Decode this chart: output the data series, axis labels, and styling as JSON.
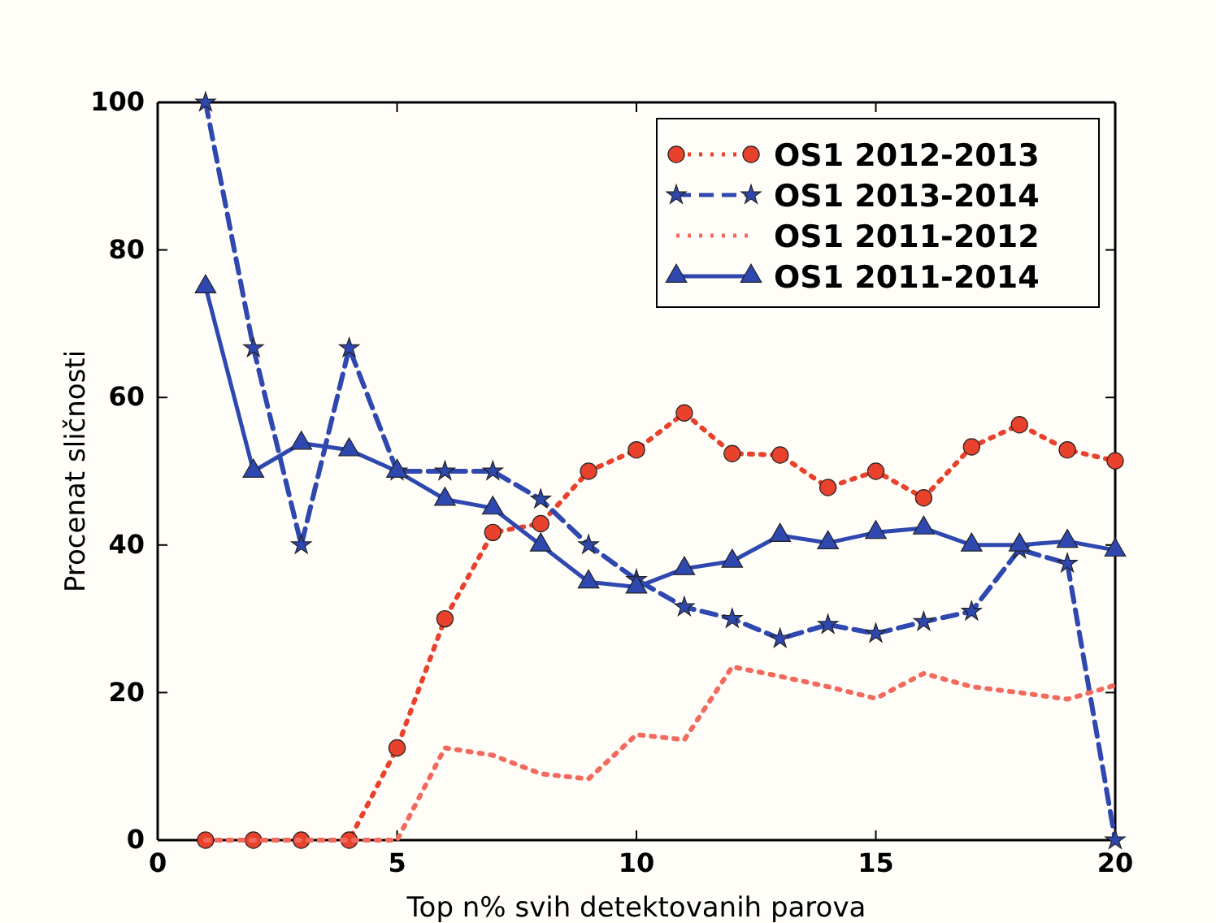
{
  "chart_data": {
    "type": "line",
    "xlabel": "Top n% svih detektovanih parova",
    "ylabel": "Procenat sličnosti",
    "x": [
      1,
      2,
      3,
      4,
      5,
      6,
      7,
      8,
      9,
      10,
      11,
      12,
      13,
      14,
      15,
      16,
      17,
      18,
      19,
      20
    ],
    "xlim": [
      0,
      20
    ],
    "xticks": [
      0,
      5,
      10,
      15,
      20
    ],
    "ylim": [
      0,
      100
    ],
    "yticks": [
      0,
      20,
      40,
      60,
      80,
      100
    ],
    "grid": false,
    "legend": "top right",
    "series": [
      {
        "name": "OS1 2012-2013",
        "color": "#e8412c",
        "marker": "circle",
        "line_style": "dotted",
        "values": [
          0,
          0,
          0,
          0,
          12.5,
          30,
          41.7,
          42.9,
          50,
          52.9,
          57.9,
          52.4,
          52.2,
          47.8,
          50,
          46.4,
          53.3,
          56.3,
          52.9,
          51.4
        ]
      },
      {
        "name": "OS1 2013-2014",
        "color": "#2e48b0",
        "marker": "star",
        "line_style": "dashed",
        "values": [
          100,
          66.7,
          40,
          66.7,
          50,
          50,
          50,
          46.2,
          40,
          35.3,
          31.6,
          30,
          27.3,
          29.2,
          28,
          29.6,
          31,
          39.4,
          37.5,
          0
        ]
      },
      {
        "name": "OS1 2011-2012",
        "color": "#f26a5e",
        "marker": "none",
        "line_style": "dotted",
        "values": [
          0,
          0,
          0,
          0,
          0,
          12.5,
          11.5,
          9,
          8.3,
          14.3,
          13.6,
          23.5,
          22.2,
          20.8,
          19.2,
          22.6,
          20.8,
          20,
          19.1,
          21
        ]
      },
      {
        "name": "OS1 2011-2014",
        "color": "#2e48b0",
        "marker": "triangle",
        "line_style": "solid",
        "values": [
          75,
          50,
          53.8,
          52.9,
          50,
          46.2,
          45,
          40,
          35,
          34.3,
          36.8,
          37.8,
          41.3,
          40.3,
          41.7,
          42.3,
          40,
          40,
          40.5,
          39.3
        ]
      }
    ]
  }
}
